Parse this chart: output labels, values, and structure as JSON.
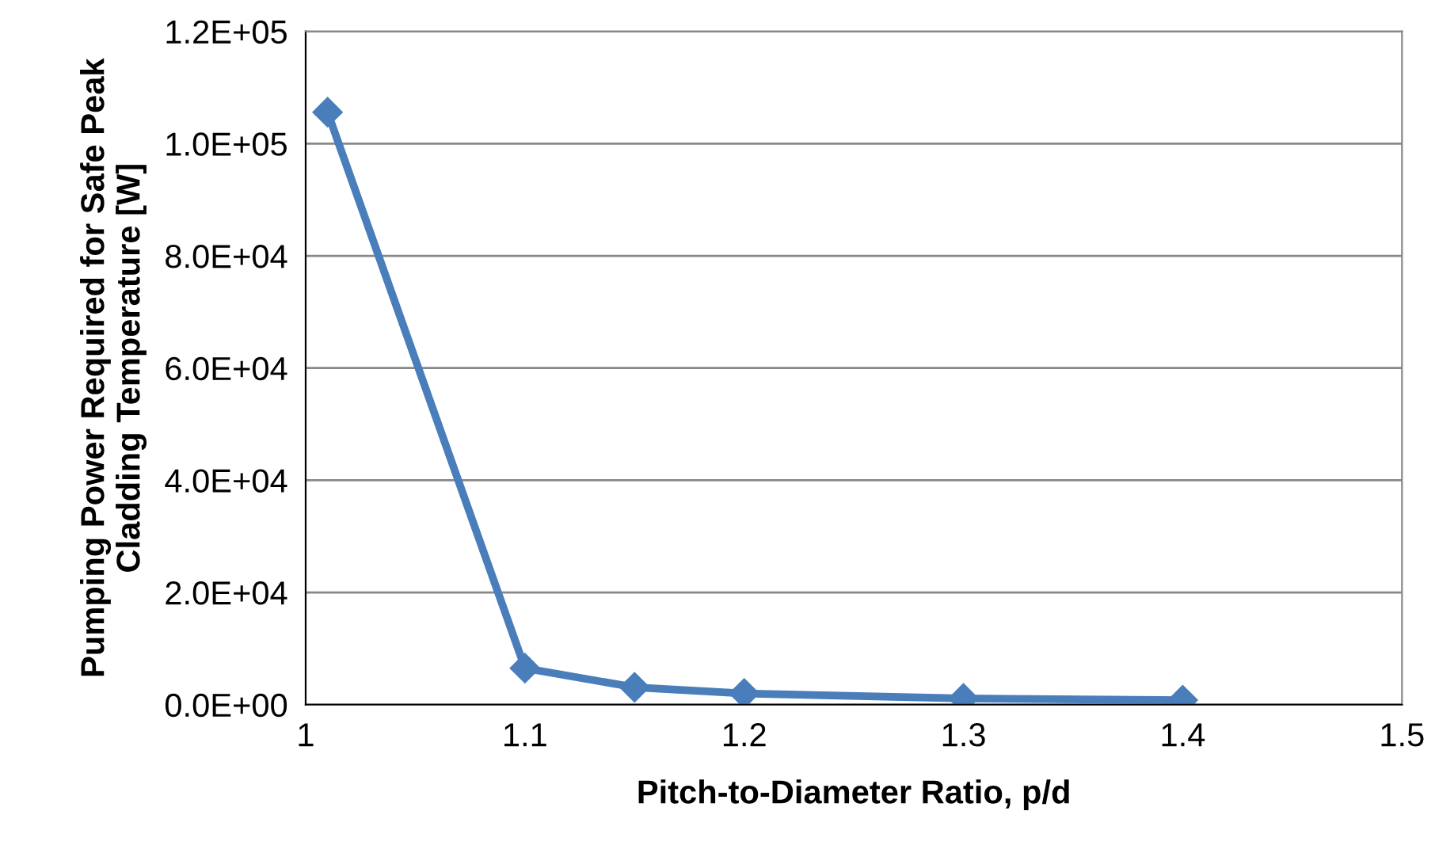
{
  "chart_data": {
    "type": "line",
    "xlabel": "Pitch-to-Diameter Ratio, p/d",
    "ylabel": "Pumping Power Required for Safe Peak\nCladding Temperature [W]",
    "x": [
      1.01,
      1.1,
      1.15,
      1.2,
      1.3,
      1.4
    ],
    "series": [
      {
        "color": "#4a7ebb",
        "values": [
          105600,
          6500,
          3100,
          2000,
          1100,
          800
        ]
      }
    ],
    "xlim": [
      1,
      1.5
    ],
    "xticks": [
      1,
      1.1,
      1.2,
      1.3,
      1.4,
      1.5
    ],
    "ylim": [
      0,
      120000
    ],
    "yticks": [
      {
        "value": 0,
        "label": "0.0E+00"
      },
      {
        "value": 20000,
        "label": "2.0E+04"
      },
      {
        "value": 40000,
        "label": "4.0E+04"
      },
      {
        "value": 60000,
        "label": "6.0E+04"
      },
      {
        "value": 80000,
        "label": "8.0E+04"
      },
      {
        "value": 100000,
        "label": "1.0E+05"
      },
      {
        "value": 120000,
        "label": "1.2E+05"
      }
    ],
    "grid": "y",
    "marker": "diamond",
    "line_style": "solid"
  }
}
